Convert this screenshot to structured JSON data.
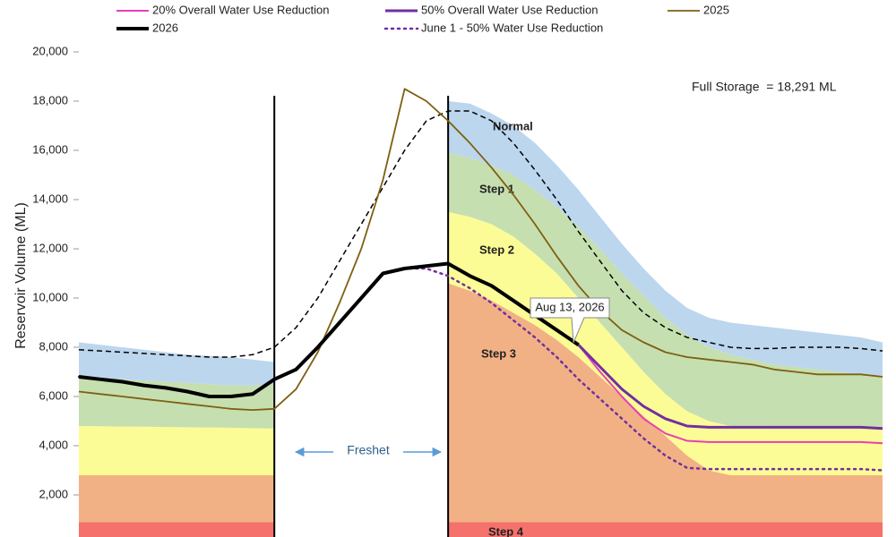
{
  "chart_data": {
    "type": "line",
    "y_label": "Reservoir Volume (ML)",
    "ylim": [
      0,
      20000
    ],
    "yticks": [
      {
        "value": 2000,
        "label": "2,000"
      },
      {
        "value": 4000,
        "label": "4,000"
      },
      {
        "value": 6000,
        "label": "6,000"
      },
      {
        "value": 8000,
        "label": "8,000"
      },
      {
        "value": 10000,
        "label": "10,000"
      },
      {
        "value": 12000,
        "label": "12,000"
      },
      {
        "value": 14000,
        "label": "14,000"
      },
      {
        "value": 16000,
        "label": "16,000"
      },
      {
        "value": 18000,
        "label": "18,000"
      },
      {
        "value": 20000,
        "label": "20,000"
      }
    ],
    "grid": false,
    "categories": [
      null,
      null,
      null,
      null,
      null,
      null,
      null,
      null,
      null,
      null,
      null,
      null,
      null,
      null,
      null,
      null,
      null,
      null,
      null,
      null,
      null,
      null,
      null,
      null,
      null,
      null,
      null,
      null,
      null,
      null,
      null,
      null,
      null,
      null,
      null,
      null,
      null,
      null
    ],
    "areas": [
      {
        "name": "Step 4",
        "color": "#f4716c",
        "values": [
          900,
          900,
          900,
          900,
          900,
          900,
          900,
          900,
          900,
          900,
          null,
          null,
          null,
          null,
          null,
          null,
          null,
          900,
          900,
          900,
          900,
          900,
          900,
          900,
          900,
          900,
          900,
          900,
          900,
          900,
          900,
          900,
          900,
          900,
          900,
          900,
          900,
          900
        ]
      },
      {
        "name": "Step 3",
        "color": "#f2b184",
        "values": [
          1900,
          1900,
          1900,
          1900,
          1900,
          1900,
          1900,
          1900,
          1900,
          1900,
          null,
          null,
          null,
          null,
          null,
          null,
          null,
          9700,
          9400,
          9000,
          8500,
          8000,
          7400,
          6700,
          5900,
          5100,
          4300,
          3500,
          2700,
          2100,
          1900,
          1900,
          1900,
          1900,
          1900,
          1900,
          1900,
          1900
        ]
      },
      {
        "name": "Step 2",
        "color": "#fcfc96",
        "values": [
          2000,
          1990,
          1980,
          1970,
          1960,
          1950,
          1940,
          1930,
          1910,
          1900,
          null,
          null,
          null,
          null,
          null,
          null,
          null,
          2900,
          3000,
          3100,
          3100,
          2900,
          2700,
          2400,
          2200,
          2000,
          1800,
          1700,
          1800,
          2000,
          2000,
          1950,
          1900,
          1900,
          1900,
          1900,
          1900,
          1900
        ]
      },
      {
        "name": "Step 1",
        "color": "#c6dfb0",
        "values": [
          2000,
          1960,
          1920,
          1880,
          1840,
          1800,
          1760,
          1720,
          1740,
          1800,
          null,
          null,
          null,
          null,
          null,
          null,
          null,
          2400,
          2400,
          2400,
          2500,
          2600,
          2700,
          2900,
          3000,
          3000,
          3100,
          3100,
          3100,
          3000,
          2900,
          2750,
          2600,
          2500,
          2400,
          2300,
          2200,
          2100
        ]
      },
      {
        "name": "Normal",
        "color": "#bcd6ee",
        "values": [
          1400,
          1350,
          1300,
          1250,
          1200,
          1150,
          1150,
          1150,
          1050,
          900,
          null,
          null,
          null,
          null,
          null,
          null,
          null,
          2100,
          2200,
          2100,
          2000,
          1900,
          1700,
          1500,
          1300,
          1200,
          1100,
          1100,
          1100,
          1200,
          1300,
          1400,
          1500,
          1500,
          1500,
          1500,
          1500,
          1400
        ]
      }
    ],
    "series": [
      {
        "color": "#000000",
        "dash": "dashed",
        "line_width": 1.5,
        "values": [
          7900,
          7850,
          7800,
          7750,
          7700,
          7650,
          7600,
          7600,
          7700,
          8000,
          8800,
          10000,
          11500,
          13000,
          14500,
          16000,
          17200,
          17600,
          17600,
          17200,
          16300,
          15200,
          14000,
          12700,
          11500,
          10300,
          9400,
          8800,
          8400,
          8200,
          8000,
          7950,
          7950,
          8000,
          8000,
          8000,
          7950,
          7850
        ]
      },
      {
        "name": "2025",
        "color": "#7f5f12",
        "dash": "solid",
        "line_width": 1.8,
        "values": [
          6200,
          6100,
          6000,
          5900,
          5800,
          5700,
          5600,
          5500,
          5450,
          5500,
          6300,
          7800,
          9800,
          12000,
          14800,
          18500,
          18000,
          17200,
          16300,
          15300,
          14200,
          13000,
          11700,
          10500,
          9500,
          8700,
          8200,
          7800,
          7600,
          7500,
          7400,
          7300,
          7100,
          7000,
          6900,
          6900,
          6900,
          6800
        ]
      },
      {
        "name": "20% Overall Water Use Reduction",
        "color": "#e83fb5",
        "dash": "solid",
        "line_width": 2,
        "values": [
          null,
          null,
          null,
          null,
          null,
          null,
          null,
          null,
          null,
          null,
          null,
          null,
          null,
          null,
          null,
          null,
          null,
          null,
          null,
          null,
          null,
          null,
          null,
          8100,
          7000,
          6000,
          5100,
          4500,
          4200,
          4150,
          4150,
          4150,
          4150,
          4150,
          4150,
          4150,
          4150,
          4100
        ]
      },
      {
        "name": "50% Overall Water Use Reduction",
        "color": "#7030a0",
        "dash": "solid",
        "line_width": 3,
        "values": [
          null,
          null,
          null,
          null,
          null,
          null,
          null,
          null,
          null,
          null,
          null,
          null,
          null,
          null,
          null,
          null,
          null,
          null,
          null,
          null,
          null,
          null,
          null,
          8100,
          7200,
          6300,
          5600,
          5100,
          4800,
          4750,
          4750,
          4750,
          4750,
          4750,
          4750,
          4750,
          4750,
          4700
        ]
      },
      {
        "name": "June 1 - 50% Water Use Reduction",
        "color": "#7030a0",
        "dash": "dotted",
        "line_width": 2.5,
        "values": [
          6800,
          6700,
          6600,
          6450,
          6350,
          6200,
          6000,
          6000,
          6100,
          6700,
          7100,
          8000,
          9000,
          10000,
          11000,
          11200,
          11200,
          10900,
          10400,
          9800,
          9100,
          8400,
          7600,
          6700,
          5900,
          5100,
          4300,
          3600,
          3100,
          3050,
          3050,
          3050,
          3050,
          3050,
          3050,
          3050,
          3050,
          3000
        ]
      },
      {
        "name": "2026",
        "color": "#000000",
        "dash": "solid",
        "line_width": 4,
        "values": [
          6800,
          6700,
          6600,
          6450,
          6350,
          6200,
          6000,
          6000,
          6100,
          6700,
          7100,
          8000,
          9000,
          10000,
          11000,
          11200,
          11300,
          11400,
          10900,
          10500,
          9900,
          9300,
          8700,
          8100,
          null,
          null,
          null,
          null,
          null,
          null,
          null,
          null,
          null,
          null,
          null,
          null,
          null,
          null
        ]
      }
    ],
    "annotations": [
      "Full Storage  = 18,291 ML",
      "Freshet",
      "Aug 13, 2026"
    ]
  }
}
